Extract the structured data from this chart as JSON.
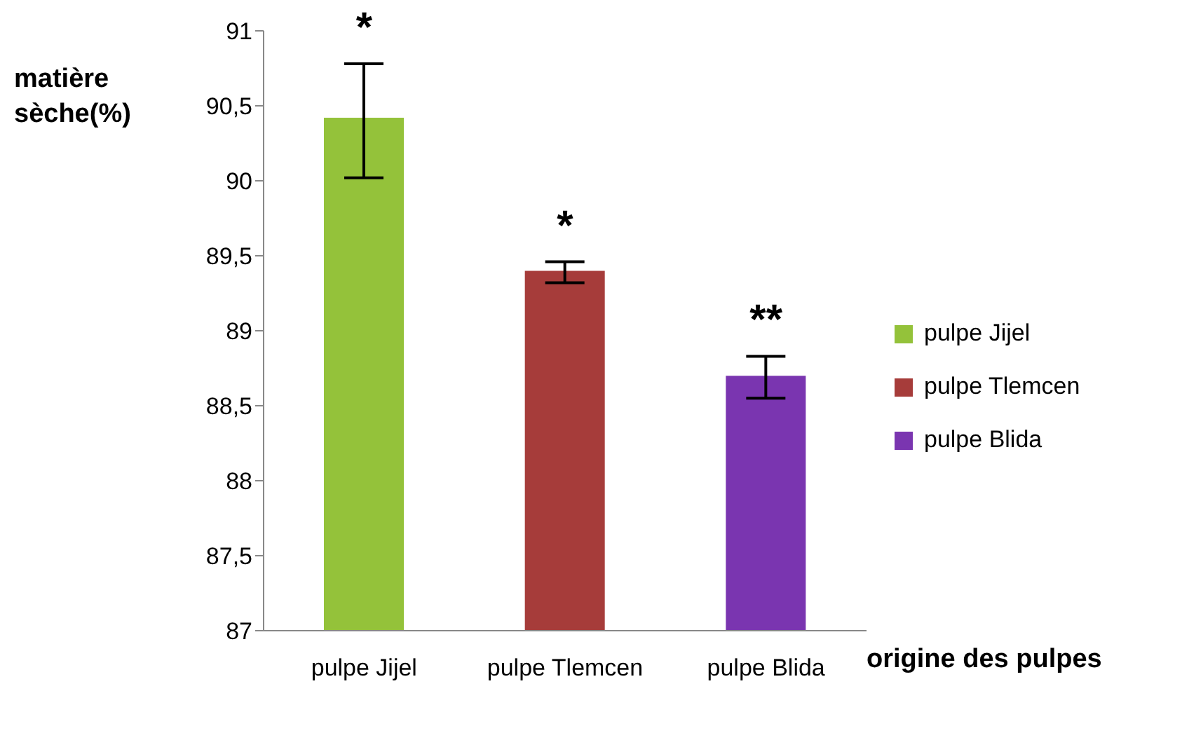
{
  "chart_data": {
    "type": "bar",
    "ylabel": "matière sèche(%)",
    "xlabel": "origine des pulpes",
    "categories": [
      "pulpe Jijel",
      "pulpe Tlemcen",
      "pulpe Blida"
    ],
    "series": [
      {
        "name": "pulpe Jijel",
        "color": "#94c23a",
        "values": [
          90.42,
          null,
          null
        ],
        "errors": [
          [
            90.02,
            90.78
          ],
          null,
          null
        ]
      },
      {
        "name": "pulpe Tlemcen",
        "color": "#a63c3a",
        "values": [
          null,
          89.4,
          null
        ],
        "errors": [
          null,
          [
            89.32,
            89.46
          ],
          null
        ]
      },
      {
        "name": "pulpe Blida",
        "color": "#7a35b0",
        "values": [
          null,
          null,
          88.7
        ],
        "errors": [
          null,
          null,
          [
            88.55,
            88.83
          ]
        ]
      }
    ],
    "ylim": [
      87,
      91
    ],
    "yticks": [
      87,
      {
        "value": 87.5,
        "label": "87,5"
      },
      88,
      {
        "value": 88.5,
        "label": "88,5"
      },
      89,
      {
        "value": 89.5,
        "label": "89,5"
      },
      90,
      {
        "value": 90.5,
        "label": "90,5"
      },
      91
    ],
    "annotations": [
      "*",
      "*",
      "**"
    ],
    "grid": false,
    "legend": "right"
  }
}
